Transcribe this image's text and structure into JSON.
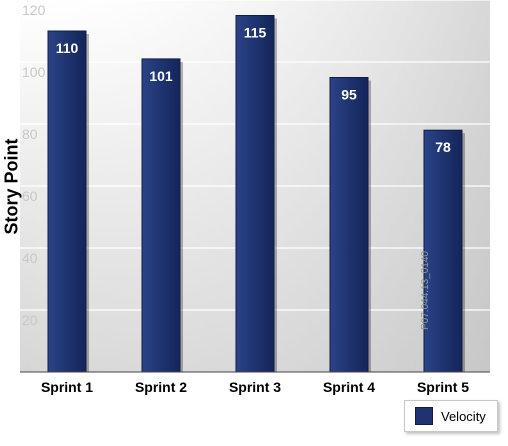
{
  "chart_data": {
    "type": "bar",
    "title": "",
    "xlabel": "",
    "ylabel": "Story Point",
    "categories": [
      "Sprint 1",
      "Sprint 2",
      "Sprint 3",
      "Sprint 4",
      "Sprint 5"
    ],
    "series": [
      {
        "name": "Velocity",
        "values": [
          110,
          101,
          115,
          95,
          78
        ],
        "color": "#1e3370"
      }
    ],
    "ylim": [
      0,
      120
    ],
    "yticks": [
      20,
      40,
      60,
      80,
      100,
      120
    ],
    "grid": true,
    "legend_position": "bottom-right",
    "data_labels": true
  },
  "watermark": "P07.044.13_0140",
  "colors": {
    "bar": "#1e3370",
    "bar_dark": "#0f1c45",
    "plot_bg_top": "#ffffff",
    "plot_bg_bottom": "#d9d9d9",
    "gridline": "#ffffff",
    "tick_text": "#c8c8c8"
  }
}
